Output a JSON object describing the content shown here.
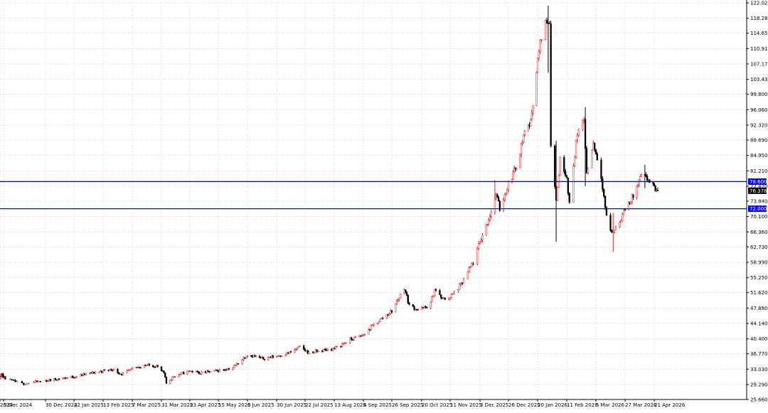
{
  "chart_data": {
    "type": "candlestick",
    "colors": {
      "up": "#e02020",
      "down": "#000000",
      "hline": "#0000ff",
      "grid": "#c8c8c8",
      "current_label_bg": "#000000"
    },
    "ylim": [
      25.66,
      122.02
    ],
    "y_ticks": [
      {
        "value": 122.02,
        "label": "122.020"
      },
      {
        "value": 118.28,
        "label": "118.280"
      },
      {
        "value": 114.65,
        "label": "114.650"
      },
      {
        "value": 110.91,
        "label": "110.910"
      },
      {
        "value": 107.17,
        "label": "107.170"
      },
      {
        "value": 103.43,
        "label": "103.430"
      },
      {
        "value": 99.8,
        "label": "99.800"
      },
      {
        "value": 96.06,
        "label": "96.060"
      },
      {
        "value": 92.32,
        "label": "92.320"
      },
      {
        "value": 88.69,
        "label": "88.690"
      },
      {
        "value": 84.95,
        "label": "84.950"
      },
      {
        "value": 81.21,
        "label": "81.210"
      },
      {
        "value": 77.47,
        "label": "77.470"
      },
      {
        "value": 73.84,
        "label": "73.840"
      },
      {
        "value": 70.1,
        "label": "70.100"
      },
      {
        "value": 66.36,
        "label": "66.360"
      },
      {
        "value": 62.73,
        "label": "62.730"
      },
      {
        "value": 58.99,
        "label": "58.990"
      },
      {
        "value": 55.25,
        "label": "55.250"
      },
      {
        "value": 51.62,
        "label": "51.620"
      },
      {
        "value": 47.88,
        "label": "47.880"
      },
      {
        "value": 44.14,
        "label": "44.140"
      },
      {
        "value": 40.4,
        "label": "40.400"
      },
      {
        "value": 36.77,
        "label": "36.770"
      },
      {
        "value": 33.03,
        "label": "33.030"
      },
      {
        "value": 29.29,
        "label": "29.290"
      },
      {
        "value": 25.66,
        "label": "25.660"
      }
    ],
    "x_ticks": [
      {
        "label": "2024",
        "date": "2024-11-13"
      },
      {
        "label": "5 Dec 2024",
        "date": "2024-12-05"
      },
      {
        "label": "30 Dec 2024",
        "date": "2024-12-30"
      },
      {
        "label": "22 Jan 2025",
        "date": "2025-01-22"
      },
      {
        "label": "13 Feb 2025",
        "date": "2025-02-13"
      },
      {
        "label": "7 Mar 2025",
        "date": "2025-03-07"
      },
      {
        "label": "31 Mar 2025",
        "date": "2025-03-31"
      },
      {
        "label": "23 Apr 2025",
        "date": "2025-04-23"
      },
      {
        "label": "15 May 2025",
        "date": "2025-05-15"
      },
      {
        "label": "6 Jun 2025",
        "date": "2025-06-06"
      },
      {
        "label": "30 Jun 2025",
        "date": "2025-06-30"
      },
      {
        "label": "22 Jul 2025",
        "date": "2025-07-22"
      },
      {
        "label": "13 Aug 2025",
        "date": "2025-08-13"
      },
      {
        "label": "4 Sep 2025",
        "date": "2025-09-04"
      },
      {
        "label": "26 Sep 2025",
        "date": "2025-09-26"
      },
      {
        "label": "20 Oct 2025",
        "date": "2025-10-20"
      },
      {
        "label": "11 Nov 2025",
        "date": "2025-11-11"
      },
      {
        "label": "3 Dec 2025",
        "date": "2025-12-03"
      },
      {
        "label": "26 Dec 2025",
        "date": "2025-12-26"
      },
      {
        "label": "20 Jan 2026",
        "date": "2026-01-20"
      },
      {
        "label": "11 Feb 2026",
        "date": "2026-02-11"
      },
      {
        "label": "5 Mar 2026",
        "date": "2026-03-05"
      },
      {
        "label": "27 Mar 2026",
        "date": "2026-03-27"
      },
      {
        "label": "21 Apr 2026",
        "date": "2026-04-21"
      }
    ],
    "horizontal_lines": [
      {
        "value": 78.6,
        "label": "78.600"
      },
      {
        "value": 72.0,
        "label": "72.000"
      }
    ],
    "current_price": {
      "value": 76.378,
      "label": "76.378"
    },
    "close_path": [
      [
        "2024-11-13",
        31.0
      ],
      [
        "2024-11-25",
        32.0
      ],
      [
        "2024-12-02",
        31.3
      ],
      [
        "2024-12-09",
        30.3
      ],
      [
        "2024-12-16",
        29.5
      ],
      [
        "2024-12-30",
        30.2
      ],
      [
        "2025-01-10",
        30.7
      ],
      [
        "2025-01-22",
        31.2
      ],
      [
        "2025-02-03",
        32.0
      ],
      [
        "2025-02-13",
        32.6
      ],
      [
        "2025-02-20",
        33.0
      ],
      [
        "2025-02-27",
        31.8
      ],
      [
        "2025-03-07",
        33.0
      ],
      [
        "2025-03-17",
        34.0
      ],
      [
        "2025-03-27",
        33.8
      ],
      [
        "2025-04-02",
        32.0
      ],
      [
        "2025-04-04",
        29.6
      ],
      [
        "2025-04-10",
        31.3
      ],
      [
        "2025-04-23",
        32.6
      ],
      [
        "2025-05-01",
        32.1
      ],
      [
        "2025-05-08",
        32.4
      ],
      [
        "2025-05-15",
        32.7
      ],
      [
        "2025-05-26",
        33.4
      ],
      [
        "2025-06-06",
        36.6
      ],
      [
        "2025-06-18",
        35.6
      ],
      [
        "2025-06-30",
        36.2
      ],
      [
        "2025-07-10",
        37.0
      ],
      [
        "2025-07-18",
        38.4
      ],
      [
        "2025-07-25",
        37.0
      ],
      [
        "2025-08-04",
        37.6
      ],
      [
        "2025-08-13",
        38.0
      ],
      [
        "2025-08-25",
        40.2
      ],
      [
        "2025-09-04",
        41.3
      ],
      [
        "2025-09-12",
        43.8
      ],
      [
        "2025-09-26",
        47.2
      ],
      [
        "2025-10-06",
        52.8
      ],
      [
        "2025-10-10",
        48.5
      ],
      [
        "2025-10-17",
        47.5
      ],
      [
        "2025-10-23",
        48.0
      ],
      [
        "2025-10-27",
        49.0
      ],
      [
        "2025-10-30",
        52.5
      ],
      [
        "2025-11-05",
        50.0
      ],
      [
        "2025-11-11",
        50.5
      ],
      [
        "2025-11-19",
        53.5
      ],
      [
        "2025-11-28",
        59.0
      ],
      [
        "2025-12-03",
        64.0
      ],
      [
        "2025-12-10",
        69.5
      ],
      [
        "2025-12-16",
        75.5
      ],
      [
        "2025-12-19",
        72.0
      ],
      [
        "2025-12-26",
        78.0
      ],
      [
        "2026-01-02",
        82.5
      ],
      [
        "2026-01-09",
        91.0
      ],
      [
        "2026-01-14",
        93.0
      ],
      [
        "2026-01-20",
        108.0
      ],
      [
        "2026-01-23",
        114.0
      ],
      [
        "2026-01-27",
        118.0
      ],
      [
        "2026-01-29",
        117.5
      ],
      [
        "2026-01-30",
        88.0
      ],
      [
        "2026-02-03",
        74.0
      ],
      [
        "2026-02-06",
        84.0
      ],
      [
        "2026-02-11",
        80.0
      ],
      [
        "2026-02-13",
        73.0
      ],
      [
        "2026-02-18",
        88.5
      ],
      [
        "2026-02-24",
        94.0
      ],
      [
        "2026-02-26",
        80.5
      ],
      [
        "2026-03-03",
        88.0
      ],
      [
        "2026-03-05",
        85.5
      ],
      [
        "2026-03-09",
        80.0
      ],
      [
        "2026-03-13",
        70.0
      ],
      [
        "2026-03-17",
        66.0
      ],
      [
        "2026-03-23",
        69.0
      ],
      [
        "2026-03-27",
        72.0
      ],
      [
        "2026-04-03",
        75.0
      ],
      [
        "2026-04-10",
        80.0
      ],
      [
        "2026-04-16",
        79.0
      ],
      [
        "2026-04-21",
        77.0
      ],
      [
        "2026-04-24",
        76.4
      ]
    ],
    "spikes": [
      {
        "date": "2025-12-15",
        "high": 79.0,
        "low": 70.8
      },
      {
        "date": "2026-01-28",
        "high": 121.3,
        "low": 105.0
      },
      {
        "date": "2026-02-03",
        "high": 88.5,
        "low": 64.0
      },
      {
        "date": "2026-02-25",
        "high": 96.7,
        "low": 77.5
      },
      {
        "date": "2026-03-18",
        "high": 71.0,
        "low": 61.5
      },
      {
        "date": "2026-04-13",
        "high": 82.7,
        "low": 77.0
      }
    ]
  }
}
